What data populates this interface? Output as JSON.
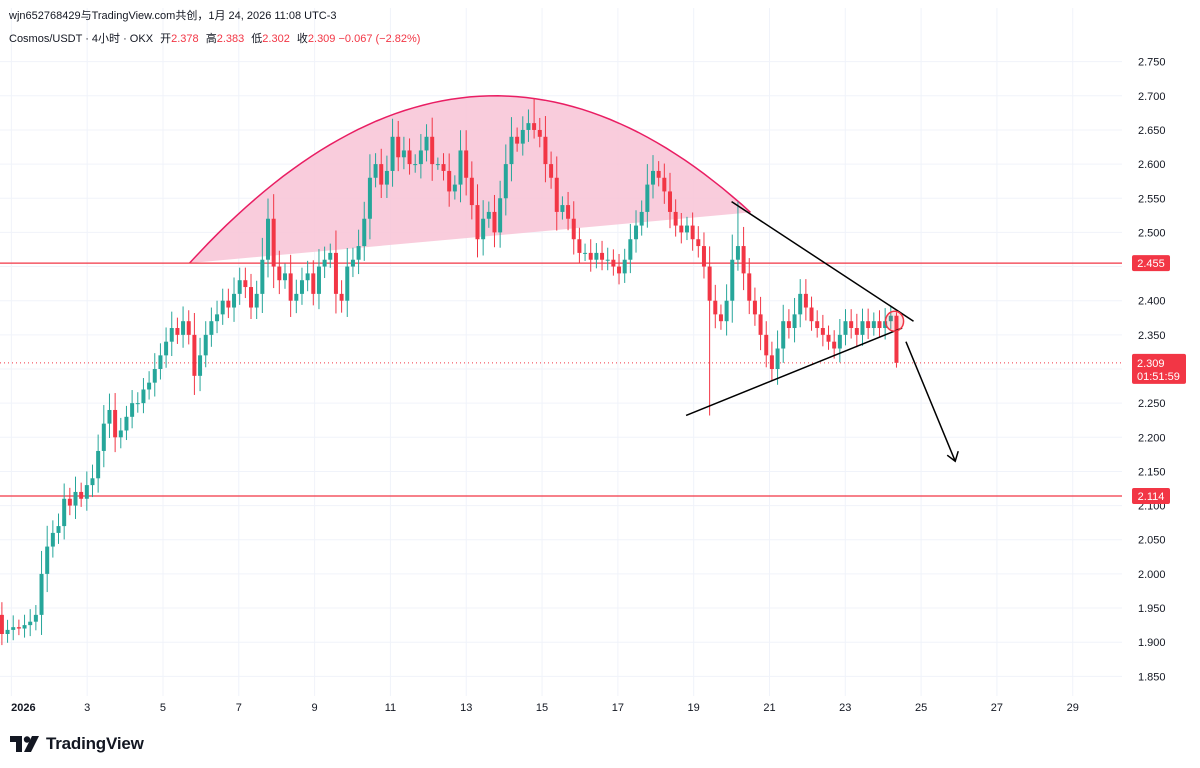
{
  "header": {
    "share_text": "wjn652768429与TradingView.com共创，1月 24, 2026 11:08 UTC-3",
    "symbol": "Cosmos/USDT · 4小时 · OKX",
    "open_label": "开",
    "open_value": "2.378",
    "high_label": "高",
    "high_value": "2.383",
    "low_label": "低",
    "low_value": "2.302",
    "close_label": "收",
    "close_value": "2.309",
    "change": "−0.067 (−2.82%)"
  },
  "brand": {
    "name": "TradingView"
  },
  "colors": {
    "up": "#26a69a",
    "down": "#f23645",
    "dome_fill": "#f8c3d6",
    "dome_stroke": "#e91e63",
    "grid": "#f0f3fa",
    "axis_text": "#131722"
  },
  "chart_data": {
    "type": "candlestick",
    "timeframe": "4小时",
    "x_ticks": [
      "2026",
      "3",
      "5",
      "7",
      "9",
      "11",
      "13",
      "15",
      "17",
      "19",
      "21",
      "23",
      "25",
      "27",
      "29"
    ],
    "y_ticks": [
      "2.750",
      "2.700",
      "2.650",
      "2.600",
      "2.550",
      "2.500",
      "2.400",
      "2.350",
      "2.250",
      "2.200",
      "2.150",
      "2.100",
      "2.050",
      "2.000",
      "1.950",
      "1.900",
      "1.850"
    ],
    "ylim": [
      1.83,
      2.77
    ],
    "xlim_days": [
      0.7,
      30.3
    ],
    "horizontal_lines": [
      {
        "price": 2.455,
        "label": "2.455",
        "color": "#f23645"
      },
      {
        "price": 2.114,
        "label": "2.114",
        "color": "#f23645"
      }
    ],
    "last_price": {
      "price": 2.309,
      "label": "2.309",
      "countdown": "01:51:59"
    },
    "closes": [
      1.912,
      1.918,
      1.922,
      1.92,
      1.925,
      1.93,
      1.94,
      2.0,
      2.04,
      2.06,
      2.07,
      2.11,
      2.1,
      2.12,
      2.11,
      2.13,
      2.14,
      2.18,
      2.22,
      2.24,
      2.2,
      2.21,
      2.23,
      2.25,
      2.25,
      2.27,
      2.28,
      2.3,
      2.32,
      2.34,
      2.36,
      2.35,
      2.37,
      2.35,
      2.29,
      2.32,
      2.35,
      2.37,
      2.38,
      2.4,
      2.39,
      2.41,
      2.43,
      2.42,
      2.39,
      2.41,
      2.46,
      2.52,
      2.45,
      2.43,
      2.44,
      2.4,
      2.41,
      2.43,
      2.44,
      2.41,
      2.45,
      2.46,
      2.47,
      2.41,
      2.4,
      2.45,
      2.46,
      2.48,
      2.52,
      2.58,
      2.6,
      2.57,
      2.59,
      2.64,
      2.61,
      2.62,
      2.6,
      2.6,
      2.62,
      2.64,
      2.6,
      2.6,
      2.59,
      2.56,
      2.57,
      2.62,
      2.58,
      2.54,
      2.49,
      2.52,
      2.53,
      2.5,
      2.55,
      2.6,
      2.64,
      2.63,
      2.65,
      2.66,
      2.65,
      2.64,
      2.6,
      2.58,
      2.53,
      2.54,
      2.52,
      2.49,
      2.47,
      2.47,
      2.46,
      2.47,
      2.46,
      2.46,
      2.45,
      2.44,
      2.46,
      2.49,
      2.51,
      2.53,
      2.57,
      2.59,
      2.58,
      2.56,
      2.53,
      2.51,
      2.5,
      2.51,
      2.49,
      2.48,
      2.45,
      2.4,
      2.38,
      2.37,
      2.4,
      2.46,
      2.48,
      2.44,
      2.4,
      2.38,
      2.35,
      2.32,
      2.3,
      2.33,
      2.37,
      2.36,
      2.38,
      2.41,
      2.39,
      2.37,
      2.36,
      2.35,
      2.34,
      2.33,
      2.35,
      2.37,
      2.36,
      2.35,
      2.37,
      2.36,
      2.37,
      2.36,
      2.37,
      2.378,
      2.309
    ],
    "annotations": [
      "rounded-top dome",
      "symmetrical triangle",
      "breakdown arrow",
      "circle marker"
    ]
  }
}
